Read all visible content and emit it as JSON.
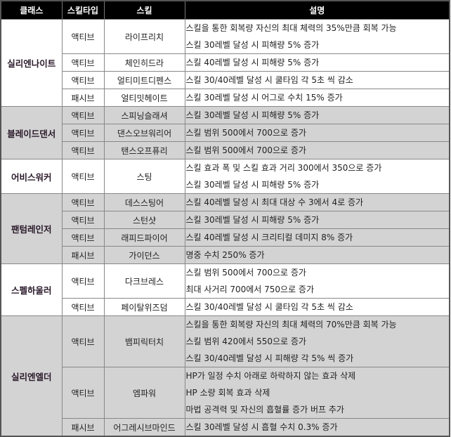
{
  "headers": [
    "클래스",
    "스킬타입",
    "스킬",
    "설명"
  ],
  "groups": [
    {
      "class": "실리엔나이트",
      "skills": [
        {
          "type": "액티브",
          "name": "라이프리치",
          "lines": [
            "스킬을 통한 회복량 자신의 최대 체력의 35%만큼 회복 가능",
            "스킬 30레벨 달성 시 피해량 5% 증가"
          ]
        },
        {
          "type": "액티브",
          "name": "체인히드라",
          "lines": [
            "스킬 40레벨 달성 시 피해량 5% 증가"
          ]
        },
        {
          "type": "액티브",
          "name": "얼티미트디펜스",
          "lines": [
            "스킬 30/40레벨 달성 시 쿨타임 각 5초 씩 감소"
          ]
        },
        {
          "type": "패시브",
          "name": "얼티밋헤이트",
          "lines": [
            "스킬 30레벨 달성 시 어그로 수치 15% 증가"
          ]
        }
      ]
    },
    {
      "class": "블레이드댄서",
      "skills": [
        {
          "type": "액티브",
          "name": "스피닝슬래셔",
          "lines": [
            "스킬 30레벨 달성 시 피해량 5% 증가"
          ]
        },
        {
          "type": "액티브",
          "name": "댄스오브워리어",
          "lines": [
            "스킬 범위 500에서 700으로 증가"
          ]
        },
        {
          "type": "액티브",
          "name": "탠스오프퓨리",
          "lines": [
            "스킬 범위 500에서 700으로 증가"
          ]
        }
      ]
    },
    {
      "class": "어비스워커",
      "skills": [
        {
          "type": "액티브",
          "name": "스팅",
          "lines": [
            "스킬 효과 폭 및 스킬 효과 거리 300에서 350으로 증가",
            "스킬 30레벨 달성 시 피해량 5% 증가"
          ]
        }
      ]
    },
    {
      "class": "팬텀레인저",
      "skills": [
        {
          "type": "액티브",
          "name": "데스스팅어",
          "lines": [
            "스킬 40레벨 달성 시 최대 대상 수 3에서 4로 증가"
          ]
        },
        {
          "type": "액티브",
          "name": "스턴샷",
          "lines": [
            "스킬 30레벨 달성 시 피해량 5% 증가"
          ]
        },
        {
          "type": "액티브",
          "name": "래피드파이어",
          "lines": [
            "스킬 40레벨 달성 시 크리티컬 데미지 8% 증가"
          ]
        },
        {
          "type": "패시브",
          "name": "가이던스",
          "lines": [
            "명중 수치 250% 증가"
          ]
        }
      ]
    },
    {
      "class": "스펠하울러",
      "skills": [
        {
          "type": "액티브",
          "name": "다크브레스",
          "lines": [
            "스킬 범위 500에서 700으로 증가",
            "최대 사거리 700에서 750으로 증가"
          ]
        },
        {
          "type": "액티브",
          "name": "페이탈위즈덤",
          "lines": [
            "스킬 30/40레벨 달성 시 쿨타임 각 5초 씩 감소"
          ]
        }
      ]
    },
    {
      "class": "실리엔엘더",
      "skills": [
        {
          "type": "액티브",
          "name": "뱀피릭터치",
          "lines": [
            "스킬을 통한 회복량 자신의 최대 체력의 70%만큼 회복 가능",
            "스킬 범위 420에서 550으로 증가",
            "스킬 30/40레벨 달성 시 피해량 각 5% 씩 증가"
          ]
        },
        {
          "type": "액티브",
          "name": "엠파워",
          "lines": [
            "HP가 일정 수치 아래로 하락하지 않는 효과 삭제",
            "HP 소량 회복 효과 삭제",
            "마법 공격력 및 자신의 흡혈률 증가 버프 추가"
          ]
        },
        {
          "type": "패시브",
          "name": "어그레시브마인드",
          "lines": [
            "스킬 30레벨 달성 시 흡혈 수치 0.3% 증가"
          ]
        }
      ]
    }
  ],
  "colors": {
    "header_bg": "#000000",
    "header_text": "#ffffff",
    "row_alt_bg": "#d3d3d3",
    "row_bg": "#ffffff"
  }
}
